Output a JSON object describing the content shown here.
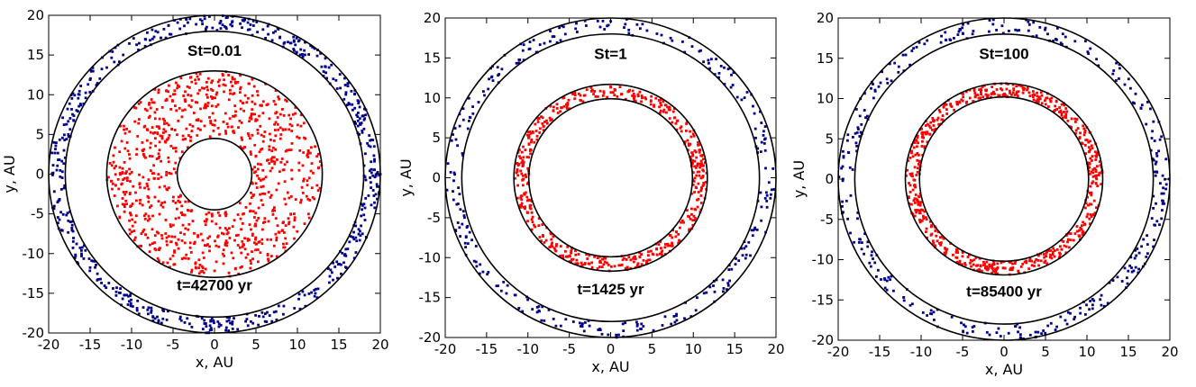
{
  "chart_data": [
    {
      "type": "scatter",
      "xlabel": "x, AU",
      "ylabel": "y, AU",
      "xlim": [
        -20,
        20
      ],
      "ylim": [
        -20,
        20
      ],
      "xticks": [
        -20,
        -15,
        -10,
        -5,
        0,
        5,
        10,
        15,
        20
      ],
      "yticks": [
        -20,
        -15,
        -10,
        -5,
        0,
        5,
        10,
        15,
        20
      ],
      "annotations": {
        "stokes": "St=0.01",
        "time": "t=42700 yr"
      },
      "circle_radii_au": [
        4.5,
        13,
        18,
        20
      ],
      "colors": {
        "outer": "#00008b",
        "inner": "#ff0000"
      },
      "series": [
        {
          "group": "outer",
          "r_min": 18,
          "r_max": 20,
          "count": 560
        },
        {
          "group": "inner",
          "r_min": 4.6,
          "r_max": 13,
          "count": 900
        }
      ]
    },
    {
      "type": "scatter",
      "xlabel": "x, AU",
      "ylabel": "y, AU",
      "xlim": [
        -20,
        20
      ],
      "ylim": [
        -20,
        20
      ],
      "xticks": [
        -20,
        -15,
        -10,
        -5,
        0,
        5,
        10,
        15,
        20
      ],
      "yticks": [
        -20,
        -15,
        -10,
        -5,
        0,
        5,
        10,
        15,
        20
      ],
      "annotations": {
        "stokes": "St=1",
        "time": "t=1425 yr"
      },
      "circle_radii_au": [
        9.9,
        11.7,
        18,
        20
      ],
      "colors": {
        "outer": "#00008b",
        "inner": "#ff0000"
      },
      "series": [
        {
          "group": "outer",
          "r_min": 18,
          "r_max": 20,
          "count": 300
        },
        {
          "group": "inner",
          "r_min": 9.9,
          "r_max": 11.7,
          "count": 500
        }
      ]
    },
    {
      "type": "scatter",
      "xlabel": "x, AU",
      "ylabel": "y, AU",
      "xlim": [
        -20,
        20
      ],
      "ylim": [
        -20,
        20
      ],
      "xticks": [
        -20,
        -15,
        -10,
        -5,
        0,
        5,
        10,
        15,
        20
      ],
      "yticks": [
        -20,
        -15,
        -10,
        -5,
        0,
        5,
        10,
        15,
        20
      ],
      "annotations": {
        "stokes": "St=100",
        "time": "t=85400 yr"
      },
      "circle_radii_au": [
        10.2,
        11.9,
        18,
        20
      ],
      "colors": {
        "outer": "#00008b",
        "inner": "#ff0000"
      },
      "series": [
        {
          "group": "outer",
          "r_min": 18,
          "r_max": 20,
          "count": 330
        },
        {
          "group": "inner",
          "r_min": 10.2,
          "r_max": 11.9,
          "count": 600
        }
      ]
    }
  ]
}
